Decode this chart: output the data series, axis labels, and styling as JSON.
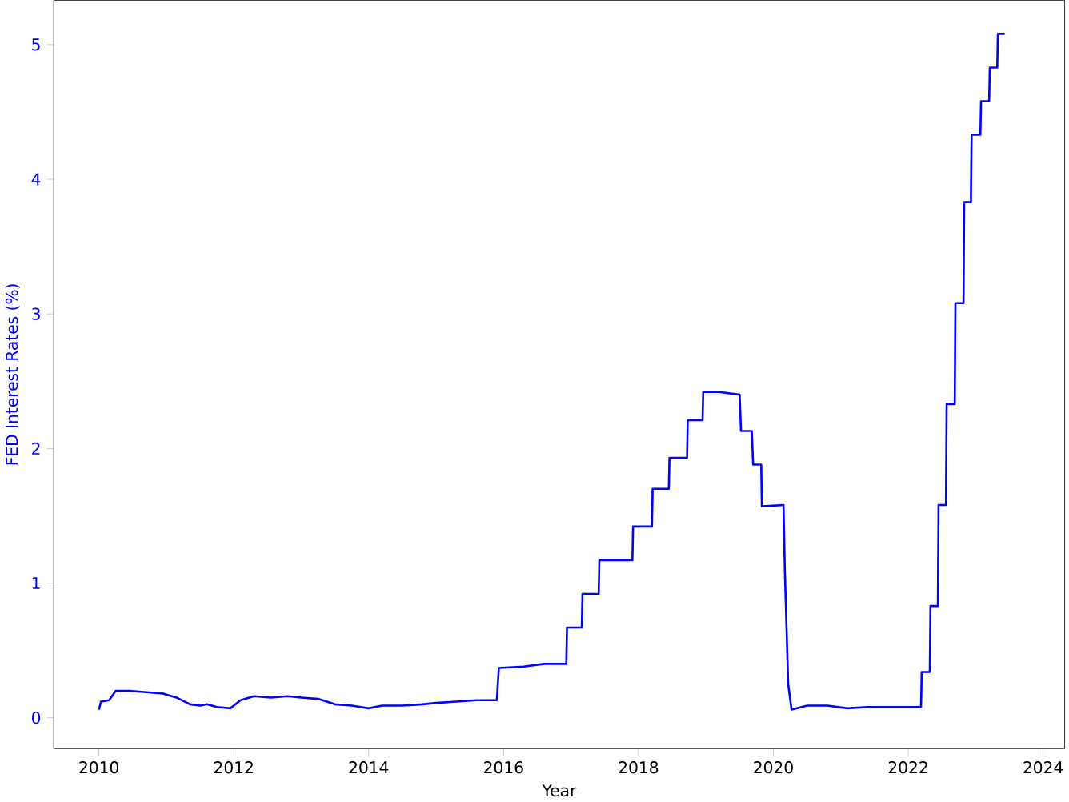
{
  "chart_data": {
    "type": "line",
    "xlabel": "Year",
    "ylabel": "FED Interest Rates (%)",
    "x": [
      2010.0,
      2010.03,
      2010.15,
      2010.25,
      2010.45,
      2010.7,
      2010.95,
      2011.15,
      2011.35,
      2011.5,
      2011.6,
      2011.75,
      2011.95,
      2012.1,
      2012.3,
      2012.55,
      2012.8,
      2013.0,
      2013.25,
      2013.5,
      2013.75,
      2014.0,
      2014.2,
      2014.5,
      2014.8,
      2015.0,
      2015.3,
      2015.6,
      2015.9,
      2015.93,
      2016.3,
      2016.6,
      2016.93,
      2016.94,
      2017.16,
      2017.17,
      2017.41,
      2017.42,
      2017.91,
      2017.92,
      2018.2,
      2018.21,
      2018.45,
      2018.46,
      2018.72,
      2018.73,
      2018.95,
      2018.96,
      2019.2,
      2019.5,
      2019.52,
      2019.68,
      2019.7,
      2019.82,
      2019.83,
      2020.15,
      2020.17,
      2020.22,
      2020.27,
      2020.5,
      2020.8,
      2021.1,
      2021.4,
      2021.7,
      2021.9,
      2022.19,
      2022.2,
      2022.32,
      2022.33,
      2022.44,
      2022.45,
      2022.56,
      2022.57,
      2022.69,
      2022.7,
      2022.82,
      2022.83,
      2022.93,
      2022.94,
      2023.07,
      2023.08,
      2023.2,
      2023.21,
      2023.32,
      2023.33,
      2023.43
    ],
    "series": [
      {
        "color": "#0000ff",
        "values": [
          0.06,
          0.12,
          0.13,
          0.2,
          0.2,
          0.19,
          0.18,
          0.15,
          0.1,
          0.09,
          0.1,
          0.08,
          0.07,
          0.13,
          0.16,
          0.15,
          0.16,
          0.15,
          0.14,
          0.1,
          0.09,
          0.07,
          0.09,
          0.09,
          0.1,
          0.11,
          0.12,
          0.13,
          0.13,
          0.37,
          0.38,
          0.4,
          0.4,
          0.67,
          0.67,
          0.92,
          0.92,
          1.17,
          1.17,
          1.42,
          1.42,
          1.7,
          1.7,
          1.93,
          1.93,
          2.21,
          2.21,
          2.42,
          2.42,
          2.4,
          2.13,
          2.13,
          1.88,
          1.88,
          1.57,
          1.58,
          1.1,
          0.25,
          0.06,
          0.09,
          0.09,
          0.07,
          0.08,
          0.08,
          0.08,
          0.08,
          0.34,
          0.34,
          0.83,
          0.83,
          1.58,
          1.58,
          2.33,
          2.33,
          3.08,
          3.08,
          3.83,
          3.83,
          4.33,
          4.33,
          4.58,
          4.58,
          4.83,
          4.83,
          5.08,
          5.08
        ]
      }
    ],
    "xlim": [
      2009.33,
      2024.32
    ],
    "ylim": [
      -0.23,
      5.33
    ],
    "xticks": [
      2010,
      2012,
      2014,
      2016,
      2018,
      2020,
      2022,
      2024
    ],
    "yticks": [
      0,
      1,
      2,
      3,
      4,
      5
    ],
    "grid": false,
    "marker": "none",
    "line_style": "solid"
  }
}
